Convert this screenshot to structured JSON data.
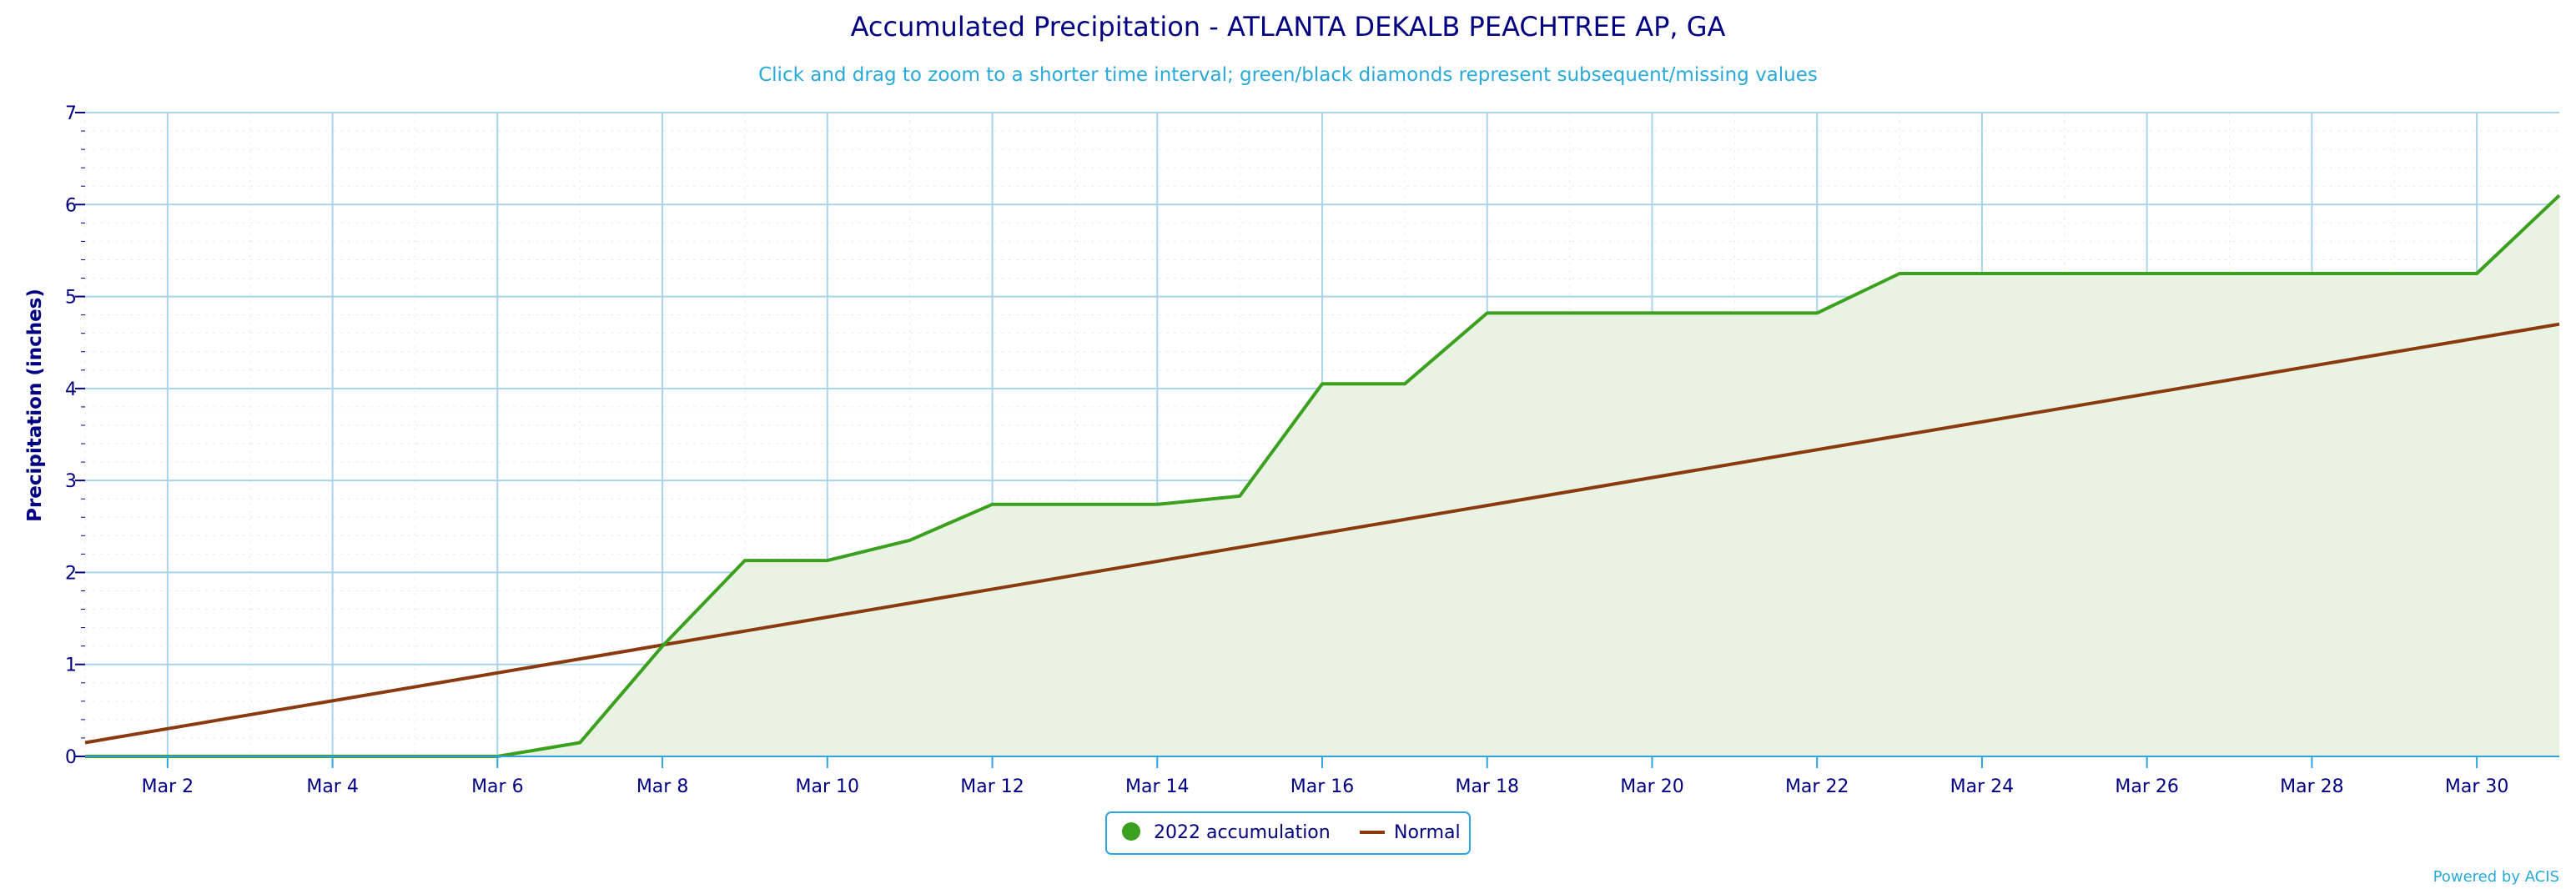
{
  "chart_data": {
    "type": "area",
    "title": "Accumulated Precipitation - ATLANTA DEKALB PEACHTREE AP, GA",
    "subtitle": "Click and drag to zoom to a shorter time interval; green/black diamonds represent subsequent/missing values",
    "ylabel": "Precipitation (inches)",
    "xlabel": "",
    "ylim": [
      0,
      7
    ],
    "y_ticks": [
      0,
      1,
      2,
      3,
      4,
      5,
      6,
      7
    ],
    "y_tick_labels": [
      "0",
      "1",
      "2",
      "3",
      "4",
      "5",
      "6",
      "7"
    ],
    "x_range": [
      1,
      31
    ],
    "x_ticks": [
      2,
      4,
      6,
      8,
      10,
      12,
      14,
      16,
      18,
      20,
      22,
      24,
      26,
      28,
      30
    ],
    "x_tick_labels": [
      "Mar 2",
      "Mar 4",
      "Mar 6",
      "Mar 8",
      "Mar 10",
      "Mar 12",
      "Mar 14",
      "Mar 16",
      "Mar 18",
      "Mar 20",
      "Mar 22",
      "Mar 24",
      "Mar 26",
      "Mar 28",
      "Mar 30"
    ],
    "grid": true,
    "legend_position": "bottom-center",
    "series": [
      {
        "name": "2022 accumulation",
        "kind": "area",
        "color": "#3ba01e",
        "fill": "#e9f3e3",
        "x": [
          1,
          2,
          3,
          4,
          5,
          6,
          7,
          8,
          9,
          10,
          11,
          12,
          13,
          14,
          15,
          16,
          17,
          18,
          19,
          20,
          21,
          22,
          23,
          24,
          25,
          26,
          27,
          28,
          29,
          30,
          31
        ],
        "values": [
          0,
          0,
          0,
          0,
          0,
          0,
          0.15,
          1.2,
          2.13,
          2.13,
          2.35,
          2.74,
          2.74,
          2.74,
          2.83,
          4.05,
          4.05,
          4.82,
          4.82,
          4.82,
          4.82,
          4.82,
          5.25,
          5.25,
          5.25,
          5.25,
          5.25,
          5.25,
          5.25,
          5.25,
          6.1
        ]
      },
      {
        "name": "Normal",
        "kind": "line",
        "color": "#8b3a0f",
        "x": [
          1,
          31
        ],
        "values": [
          0.15,
          4.7
        ]
      }
    ]
  },
  "footer": {
    "credit": "Powered by ACIS"
  }
}
